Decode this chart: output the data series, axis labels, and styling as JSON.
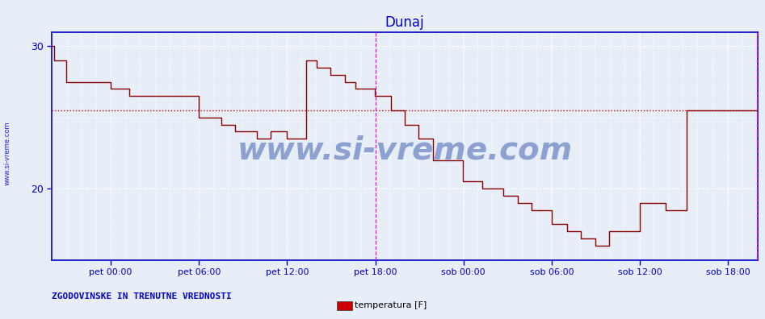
{
  "title": "Dunaj",
  "bg_color": "#e8eef8",
  "line_color": "#880000",
  "grid_color": "#ffffff",
  "grid_linestyle": "--",
  "axis_color": "#0000cc",
  "tick_color": "#0000cc",
  "title_color": "#0000cc",
  "watermark_text": "www.si-vreme.com",
  "watermark_color": "#3355aa",
  "watermark_alpha": 0.5,
  "watermark_fontsize": 28,
  "side_text": "www.si-vreme.com",
  "side_color": "#0000cc",
  "footer_left": "ZGODOVINSKE IN TRENUTNE VREDNOSTI",
  "footer_color": "#0000cc",
  "legend_label": "temperatura [F]",
  "legend_rect_color": "#cc0000",
  "hline_y": 25.5,
  "hline_color": "#cc0000",
  "hline_style": "dotted",
  "vline_color": "#ff00ff",
  "vline_x1": 0.4583,
  "vline_x2": 0.9999,
  "ylim_min": 15.0,
  "ylim_max": 31.0,
  "xlim_min": 0.0,
  "xlim_max": 1.0,
  "xtick_positions": [
    0.0833,
    0.2083,
    0.3333,
    0.4583,
    0.5833,
    0.7083,
    0.8333,
    0.9583
  ],
  "xtick_labels": [
    "pet 00:00",
    "pet 06:00",
    "pet 12:00",
    "pet 18:00",
    "sob 00:00",
    "sob 06:00",
    "sob 12:00",
    "sob 18:00"
  ],
  "time_steps": [
    0.0,
    0.003,
    0.02,
    0.055,
    0.083,
    0.11,
    0.16,
    0.208,
    0.24,
    0.26,
    0.29,
    0.31,
    0.333,
    0.36,
    0.375,
    0.395,
    0.415,
    0.43,
    0.458,
    0.48,
    0.5,
    0.52,
    0.54,
    0.583,
    0.61,
    0.64,
    0.66,
    0.68,
    0.708,
    0.73,
    0.75,
    0.77,
    0.79,
    0.833,
    0.87,
    0.9,
    0.96,
    1.0
  ],
  "temp_steps": [
    30.0,
    29.0,
    27.5,
    27.5,
    27.0,
    26.5,
    26.5,
    25.0,
    24.5,
    24.0,
    23.5,
    24.0,
    23.5,
    29.0,
    28.5,
    28.0,
    27.5,
    27.0,
    26.5,
    25.5,
    24.5,
    23.5,
    22.0,
    20.5,
    20.0,
    19.5,
    19.0,
    18.5,
    17.5,
    17.0,
    16.5,
    16.0,
    17.0,
    19.0,
    18.5,
    25.5,
    25.5,
    25.5
  ]
}
